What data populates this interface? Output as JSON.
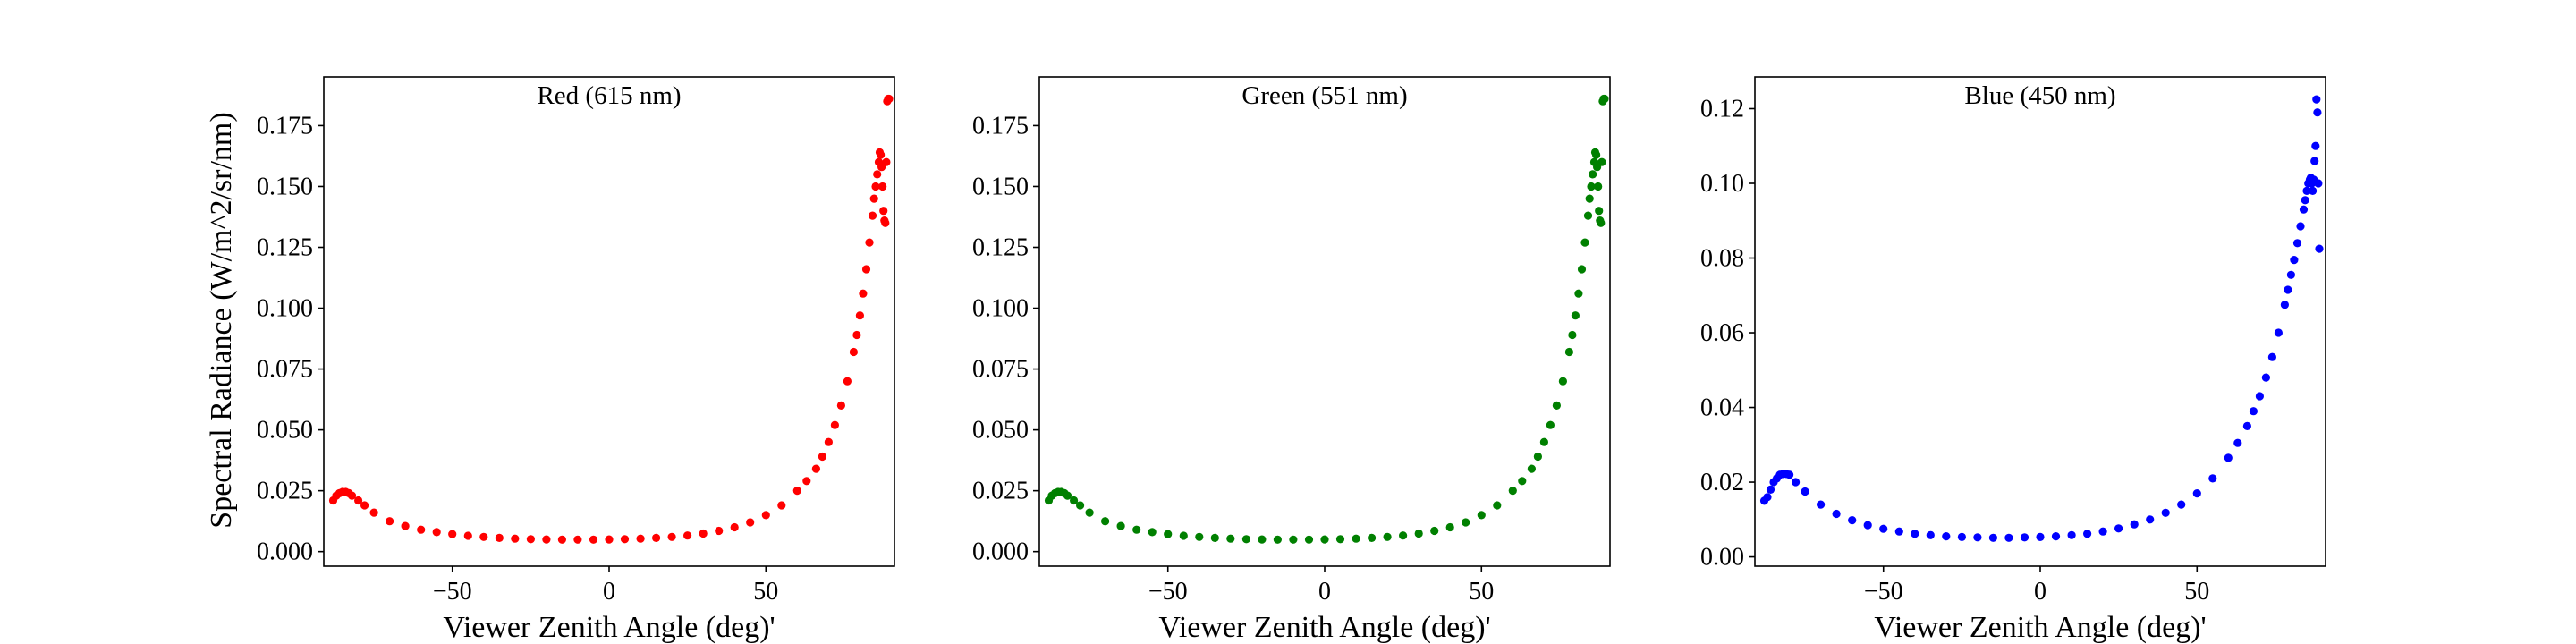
{
  "figure": {
    "ylabel": "Spectral Radiance (W/m^2/sr/nm)",
    "xlabel": "Viewer Zenith Angle (deg)'"
  },
  "chart_data": [
    {
      "type": "scatter",
      "title": "Red (615 nm)",
      "xlabel": "Viewer Zenith Angle (deg)'",
      "ylabel": "Spectral Radiance (W/m^2/sr/nm)",
      "color": "#ff0000",
      "xlim": [
        -91,
        91
      ],
      "ylim": [
        -0.006,
        0.195
      ],
      "xticks": [
        -50,
        0,
        50
      ],
      "xtick_labels": [
        "−50",
        "0",
        "50"
      ],
      "yticks": [
        0.0,
        0.025,
        0.05,
        0.075,
        0.1,
        0.125,
        0.15,
        0.175
      ],
      "ytick_labels": [
        "0.000",
        "0.025",
        "0.050",
        "0.075",
        "0.100",
        "0.125",
        "0.150",
        "0.175"
      ],
      "grid": false,
      "series": [
        {
          "x": [
            -88,
            -87,
            -86,
            -85,
            -84,
            -83,
            -82,
            -80,
            -78,
            -75,
            -70,
            -65,
            -60,
            -55,
            -50,
            -45,
            -40,
            -35,
            -30,
            -25,
            -20,
            -15,
            -10,
            -5,
            0,
            5,
            10,
            15,
            20,
            25,
            30,
            35,
            40,
            45,
            50,
            55,
            60,
            63,
            66,
            68,
            70,
            72,
            74,
            76,
            78,
            79,
            80,
            81,
            82,
            83,
            84,
            84.5,
            85,
            85.5,
            86,
            86.3,
            86.6,
            86.9,
            87.2,
            87.5,
            87.8,
            88.1,
            88.4,
            88.7,
            89,
            89.3
          ],
          "y": [
            0.021,
            0.023,
            0.024,
            0.0245,
            0.0245,
            0.024,
            0.023,
            0.021,
            0.019,
            0.016,
            0.0125,
            0.0105,
            0.009,
            0.008,
            0.0072,
            0.0065,
            0.006,
            0.0056,
            0.0053,
            0.0051,
            0.005,
            0.0049,
            0.0049,
            0.0049,
            0.005,
            0.0051,
            0.0053,
            0.0056,
            0.006,
            0.0066,
            0.0074,
            0.0085,
            0.01,
            0.012,
            0.015,
            0.019,
            0.025,
            0.029,
            0.034,
            0.039,
            0.045,
            0.052,
            0.06,
            0.07,
            0.082,
            0.089,
            0.097,
            0.106,
            0.116,
            0.127,
            0.138,
            0.145,
            0.15,
            0.155,
            0.16,
            0.164,
            0.163,
            0.158,
            0.15,
            0.14,
            0.136,
            0.135,
            0.16,
            0.185,
            0.186,
            0.186
          ]
        }
      ]
    },
    {
      "type": "scatter",
      "title": "Green (551 nm)",
      "xlabel": "Viewer Zenith Angle (deg)'",
      "ylabel": "",
      "color": "#008000",
      "xlim": [
        -91,
        91
      ],
      "ylim": [
        -0.006,
        0.195
      ],
      "xticks": [
        -50,
        0,
        50
      ],
      "xtick_labels": [
        "−50",
        "0",
        "50"
      ],
      "yticks": [
        0.0,
        0.025,
        0.05,
        0.075,
        0.1,
        0.125,
        0.15,
        0.175
      ],
      "ytick_labels": [
        "0.000",
        "0.025",
        "0.050",
        "0.075",
        "0.100",
        "0.125",
        "0.150",
        "0.175"
      ],
      "grid": false,
      "series": [
        {
          "x": [
            -88,
            -87,
            -86,
            -85,
            -84,
            -83,
            -82,
            -80,
            -78,
            -75,
            -70,
            -65,
            -60,
            -55,
            -50,
            -45,
            -40,
            -35,
            -30,
            -25,
            -20,
            -15,
            -10,
            -5,
            0,
            5,
            10,
            15,
            20,
            25,
            30,
            35,
            40,
            45,
            50,
            55,
            60,
            63,
            66,
            68,
            70,
            72,
            74,
            76,
            78,
            79,
            80,
            81,
            82,
            83,
            84,
            84.5,
            85,
            85.5,
            86,
            86.3,
            86.6,
            86.9,
            87.2,
            87.5,
            87.8,
            88.1,
            88.4,
            88.7,
            89,
            89.3
          ],
          "y": [
            0.021,
            0.023,
            0.024,
            0.0245,
            0.0245,
            0.024,
            0.023,
            0.021,
            0.019,
            0.016,
            0.0125,
            0.0105,
            0.009,
            0.008,
            0.0072,
            0.0065,
            0.006,
            0.0056,
            0.0053,
            0.0051,
            0.005,
            0.0049,
            0.0049,
            0.0049,
            0.005,
            0.0051,
            0.0053,
            0.0056,
            0.006,
            0.0066,
            0.0074,
            0.0085,
            0.01,
            0.012,
            0.015,
            0.019,
            0.025,
            0.029,
            0.034,
            0.039,
            0.045,
            0.052,
            0.06,
            0.07,
            0.082,
            0.089,
            0.097,
            0.106,
            0.116,
            0.127,
            0.138,
            0.145,
            0.15,
            0.155,
            0.16,
            0.164,
            0.163,
            0.158,
            0.15,
            0.14,
            0.136,
            0.135,
            0.16,
            0.185,
            0.186,
            0.186
          ]
        }
      ]
    },
    {
      "type": "scatter",
      "title": "Blue (450 nm)",
      "xlabel": "Viewer Zenith Angle (deg)'",
      "ylabel": "",
      "color": "#0000ff",
      "xlim": [
        -91,
        91
      ],
      "ylim": [
        -0.0025,
        0.1285
      ],
      "xticks": [
        -50,
        0,
        50
      ],
      "xtick_labels": [
        "−50",
        "0",
        "50"
      ],
      "yticks": [
        0.0,
        0.02,
        0.04,
        0.06,
        0.08,
        0.1,
        0.12
      ],
      "ytick_labels": [
        "0.00",
        "0.02",
        "0.04",
        "0.06",
        "0.08",
        "0.10",
        "0.12"
      ],
      "grid": false,
      "series": [
        {
          "x": [
            -88,
            -87,
            -86,
            -85,
            -84,
            -83,
            -82,
            -81,
            -80,
            -78,
            -75,
            -70,
            -65,
            -60,
            -55,
            -50,
            -45,
            -40,
            -35,
            -30,
            -25,
            -20,
            -15,
            -10,
            -5,
            0,
            5,
            10,
            15,
            20,
            25,
            30,
            35,
            40,
            45,
            50,
            55,
            60,
            63,
            66,
            68,
            70,
            72,
            74,
            76,
            78,
            79,
            80,
            81,
            82,
            83,
            84,
            84.5,
            85,
            85.5,
            86,
            86.3,
            86.6,
            86.9,
            87.2,
            87.5,
            87.8,
            88.1,
            88.4,
            88.7,
            89
          ],
          "y": [
            0.015,
            0.016,
            0.018,
            0.02,
            0.021,
            0.022,
            0.0222,
            0.0222,
            0.022,
            0.02,
            0.0175,
            0.014,
            0.0115,
            0.0098,
            0.0085,
            0.0075,
            0.0068,
            0.0062,
            0.0058,
            0.0055,
            0.0053,
            0.0052,
            0.0051,
            0.0051,
            0.0052,
            0.0053,
            0.0055,
            0.0058,
            0.0062,
            0.0068,
            0.0076,
            0.0087,
            0.01,
            0.0118,
            0.014,
            0.017,
            0.021,
            0.0265,
            0.0305,
            0.035,
            0.039,
            0.043,
            0.048,
            0.0535,
            0.06,
            0.0675,
            0.0715,
            0.0755,
            0.0795,
            0.084,
            0.0885,
            0.093,
            0.0955,
            0.098,
            0.1,
            0.101,
            0.1015,
            0.1,
            0.098,
            0.101,
            0.106,
            0.11,
            0.1225,
            0.119,
            0.1,
            0.0825
          ]
        }
      ]
    }
  ]
}
